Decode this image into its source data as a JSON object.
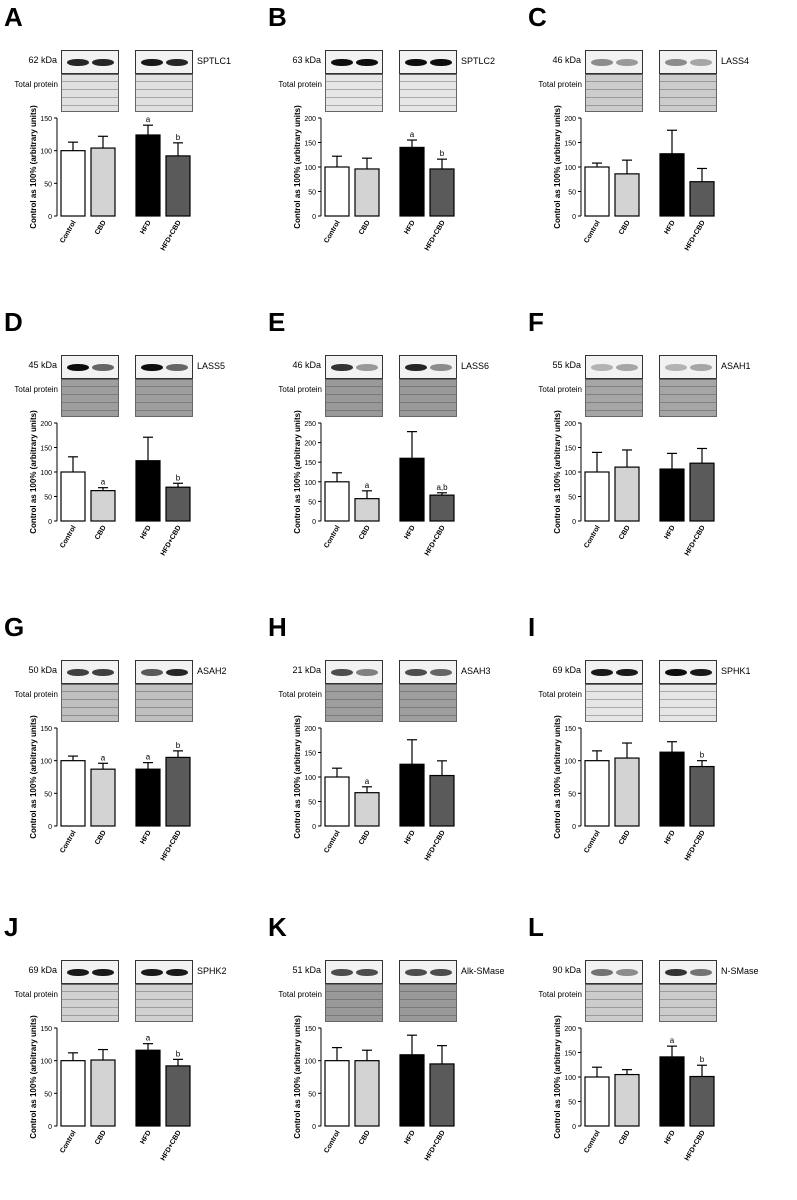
{
  "colors": {
    "control": "#ffffff",
    "cbd": "#d3d3d3",
    "hfd": "#000000",
    "hfd_cbd": "#5a5a5a",
    "blot_bg": "#f2f2f2"
  },
  "common": {
    "ylabel": "Control as 100% (arbitrary units)",
    "total_protein_label": "Total protein"
  },
  "chart_data": [
    {
      "letter": "A",
      "protein": "SPTLC1",
      "kda": "62 kDa",
      "type": "bar",
      "categories": [
        "Control",
        "CBD",
        "HFD",
        "HFD+CBD"
      ],
      "values": [
        100,
        104,
        124,
        92
      ],
      "errors": [
        13,
        18,
        15,
        20
      ],
      "ylim": [
        0,
        150
      ],
      "yticks": [
        "0",
        "50",
        "100",
        "150"
      ],
      "sig": [
        "",
        "",
        "a",
        "b"
      ],
      "band_int": [
        0.85,
        0.85,
        0.9,
        0.85
      ],
      "tp_tone": 0.88
    },
    {
      "letter": "B",
      "protein": "SPTLC2",
      "kda": "63 kDa",
      "type": "bar",
      "categories": [
        "Control",
        "CBD",
        "HFD",
        "HFD+CBD"
      ],
      "values": [
        100,
        96,
        140,
        96
      ],
      "errors": [
        22,
        22,
        15,
        20
      ],
      "ylim": [
        0,
        200
      ],
      "yticks": [
        "0",
        "50",
        "100",
        "150",
        "200"
      ],
      "sig": [
        "",
        "",
        "a",
        "b"
      ],
      "band_int": [
        0.95,
        0.95,
        0.95,
        0.95
      ],
      "tp_tone": 0.9
    },
    {
      "letter": "C",
      "protein": "LASS4",
      "kda": "46 kDa",
      "type": "bar",
      "categories": [
        "Control",
        "CBD",
        "HFD",
        "HFD+CBD"
      ],
      "values": [
        100,
        86,
        127,
        70
      ],
      "errors": [
        8,
        28,
        48,
        27
      ],
      "ylim": [
        0,
        200
      ],
      "yticks": [
        "0",
        "50",
        "100",
        "150",
        "200"
      ],
      "sig": [
        "",
        "",
        "",
        ""
      ],
      "band_int": [
        0.45,
        0.4,
        0.45,
        0.35
      ],
      "tp_tone": 0.8
    },
    {
      "letter": "D",
      "protein": "LASS5",
      "kda": "45 kDa",
      "type": "bar",
      "categories": [
        "Control",
        "CBD",
        "HFD",
        "HFD+CBD"
      ],
      "values": [
        100,
        62,
        123,
        69
      ],
      "errors": [
        31,
        6,
        48,
        8
      ],
      "ylim": [
        0,
        200
      ],
      "yticks": [
        "0",
        "50",
        "100",
        "150",
        "200"
      ],
      "sig": [
        "",
        "a",
        "",
        "b"
      ],
      "band_int": [
        0.95,
        0.6,
        0.95,
        0.6
      ],
      "tp_tone": 0.62
    },
    {
      "letter": "E",
      "protein": "LASS6",
      "kda": "46 kDa",
      "type": "bar",
      "categories": [
        "Control",
        "CBD",
        "HFD",
        "HFD+CBD"
      ],
      "values": [
        100,
        57,
        160,
        66
      ],
      "errors": [
        23,
        20,
        68,
        6
      ],
      "ylim": [
        0,
        250
      ],
      "yticks": [
        "0",
        "50",
        "100",
        "150",
        "200",
        "250"
      ],
      "sig": [
        "",
        "a",
        "",
        "a,b"
      ],
      "band_int": [
        0.8,
        0.4,
        0.85,
        0.45
      ],
      "tp_tone": 0.6
    },
    {
      "letter": "F",
      "protein": "ASAH1",
      "kda": "55 kDa",
      "type": "bar",
      "categories": [
        "Control",
        "CBD",
        "HFD",
        "HFD+CBD"
      ],
      "values": [
        100,
        110,
        106,
        118
      ],
      "errors": [
        40,
        35,
        32,
        30
      ],
      "ylim": [
        0,
        200
      ],
      "yticks": [
        "0",
        "50",
        "100",
        "150",
        "200"
      ],
      "sig": [
        "",
        "",
        "",
        ""
      ],
      "band_int": [
        0.3,
        0.35,
        0.3,
        0.35
      ],
      "tp_tone": 0.65
    },
    {
      "letter": "G",
      "protein": "ASAH2",
      "kda": "50 kDa",
      "type": "bar",
      "categories": [
        "Control",
        "CBD",
        "HFD",
        "HFD+CBD"
      ],
      "values": [
        100,
        87,
        87,
        105
      ],
      "errors": [
        7,
        9,
        10,
        10
      ],
      "ylim": [
        0,
        150
      ],
      "yticks": [
        "0",
        "50",
        "100",
        "150"
      ],
      "sig": [
        "",
        "a",
        "a",
        "b"
      ],
      "band_int": [
        0.75,
        0.75,
        0.65,
        0.85
      ],
      "tp_tone": 0.75
    },
    {
      "letter": "H",
      "protein": "ASAH3",
      "kda": "21 kDa",
      "type": "bar",
      "categories": [
        "Control",
        "CBD",
        "HFD",
        "HFD+CBD"
      ],
      "values": [
        100,
        68,
        126,
        103
      ],
      "errors": [
        18,
        12,
        50,
        30
      ],
      "ylim": [
        0,
        200
      ],
      "yticks": [
        "0",
        "50",
        "100",
        "150",
        "200"
      ],
      "sig": [
        "",
        "a",
        "",
        ""
      ],
      "band_int": [
        0.7,
        0.5,
        0.7,
        0.6
      ],
      "tp_tone": 0.62
    },
    {
      "letter": "I",
      "protein": "SPHK1",
      "kda": "69 kDa",
      "type": "bar",
      "categories": [
        "Control",
        "CBD",
        "HFD",
        "HFD+CBD"
      ],
      "values": [
        100,
        104,
        113,
        91
      ],
      "errors": [
        15,
        23,
        16,
        9
      ],
      "ylim": [
        0,
        150
      ],
      "yticks": [
        "0",
        "50",
        "100",
        "150"
      ],
      "sig": [
        "",
        "",
        "",
        "b"
      ],
      "band_int": [
        0.9,
        0.9,
        0.95,
        0.9
      ],
      "tp_tone": 0.9
    },
    {
      "letter": "J",
      "protein": "SPHK2",
      "kda": "69 kDa",
      "type": "bar",
      "categories": [
        "Control",
        "CBD",
        "HFD",
        "HFD+CBD"
      ],
      "values": [
        100,
        101,
        116,
        92
      ],
      "errors": [
        12,
        16,
        10,
        10
      ],
      "ylim": [
        0,
        150
      ],
      "yticks": [
        "0",
        "50",
        "100",
        "150"
      ],
      "sig": [
        "",
        "",
        "a",
        "b"
      ],
      "band_int": [
        0.9,
        0.9,
        0.9,
        0.9
      ],
      "tp_tone": 0.82
    },
    {
      "letter": "K",
      "protein": "Alk-SMase",
      "kda": "51 kDa",
      "type": "bar",
      "categories": [
        "Control",
        "CBD",
        "HFD",
        "HFD+CBD"
      ],
      "values": [
        100,
        100,
        109,
        95
      ],
      "errors": [
        20,
        16,
        30,
        28
      ],
      "ylim": [
        0,
        150
      ],
      "yticks": [
        "0",
        "50",
        "100",
        "150"
      ],
      "sig": [
        "",
        "",
        "",
        ""
      ],
      "band_int": [
        0.7,
        0.7,
        0.7,
        0.7
      ],
      "tp_tone": 0.6
    },
    {
      "letter": "L",
      "protein": "N-SMase",
      "kda": "90 kDa",
      "type": "bar",
      "categories": [
        "Control",
        "CBD",
        "HFD",
        "HFD+CBD"
      ],
      "values": [
        100,
        105,
        141,
        101
      ],
      "errors": [
        20,
        10,
        22,
        23
      ],
      "ylim": [
        0,
        200
      ],
      "yticks": [
        "0",
        "50",
        "100",
        "150",
        "200"
      ],
      "sig": [
        "",
        "",
        "a",
        "b"
      ],
      "band_int": [
        0.55,
        0.45,
        0.8,
        0.55
      ],
      "tp_tone": 0.8
    }
  ]
}
